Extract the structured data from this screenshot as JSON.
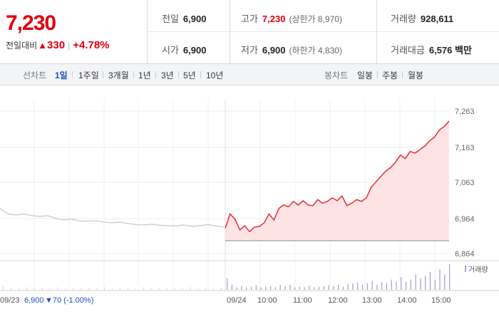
{
  "quote": {
    "price": "7,230",
    "change_label": "전일대비",
    "change_arrow": "▲",
    "change_value": "330",
    "change_pct": "+4.78%"
  },
  "stats": {
    "prev_close": {
      "label": "전일",
      "value": "6,900"
    },
    "high": {
      "label": "고가",
      "value": "7,230",
      "sub": "(상한가 8,970)"
    },
    "volume": {
      "label": "거래량",
      "value": "928,611"
    },
    "open": {
      "label": "시가",
      "value": "6,900"
    },
    "low": {
      "label": "저가",
      "value": "6,900",
      "sub": "(하한가 4,830)"
    },
    "amount": {
      "label": "거래대금",
      "value": "6,576 백만"
    }
  },
  "period_tabs": {
    "label": "선차트",
    "items": [
      "1일",
      "1주일",
      "3개월",
      "1년",
      "3년",
      "5년",
      "10년"
    ],
    "active": "1일"
  },
  "candle_tabs": {
    "label": "봉차트",
    "items": [
      "일봉",
      "주봉",
      "월봉"
    ]
  },
  "chart": {
    "y_ticks": [
      "7,263",
      "7,163",
      "7,063",
      "6,964",
      "6,864"
    ],
    "x_ticks": [
      "09/24",
      "10:00",
      "11:00",
      "12:00",
      "13:00",
      "14:00",
      "15:00"
    ],
    "prev_day_label": "09/23",
    "prev_day_close": "6,900",
    "prev_day_change": "▼70 (-1.00%)",
    "volume_legend": "거래량",
    "colors": {
      "today_line": "#e8202a",
      "today_fill": "#fde3e4",
      "prev_line": "#c8c8c8",
      "volume_prev": "#cfcfcf",
      "volume_today": "#a99bcf",
      "prev_change": "#1a4fc4"
    },
    "series_today": [
      6935,
      6975,
      6960,
      6930,
      6942,
      6925,
      6938,
      6940,
      6950,
      6975,
      6958,
      6990,
      7000,
      6995,
      7010,
      7000,
      7012,
      7000,
      6998,
      7015,
      7005,
      7010,
      7020,
      7012,
      7025,
      6998,
      7005,
      7015,
      7010,
      7020,
      7050,
      7065,
      7080,
      7095,
      7105,
      7120,
      7140,
      7130,
      7150,
      7145,
      7155,
      7165,
      7180,
      7190,
      7210,
      7220,
      7235
    ],
    "series_prev": [
      6990,
      6975,
      6972,
      6975,
      6970,
      6968,
      6970,
      6962,
      6958,
      6960,
      6955,
      6955,
      6956,
      6952,
      6950,
      6952,
      6948,
      6945,
      6944,
      6946,
      6943,
      6942,
      6941,
      6944,
      6940,
      6942,
      6945,
      6941,
      6938
    ],
    "volume_today": [
      0.45,
      0.2,
      0.1,
      0.15,
      0.1,
      0.12,
      0.18,
      0.1,
      0.12,
      0.15,
      0.1,
      0.18,
      0.14,
      0.2,
      0.1,
      0.12,
      0.1,
      0.16,
      0.1,
      0.12,
      0.14,
      0.18,
      0.15,
      0.2,
      0.12,
      0.22,
      0.25,
      0.3,
      0.2,
      0.25,
      0.35,
      0.2,
      0.3,
      0.25,
      0.4,
      0.3,
      0.5,
      0.3,
      0.4,
      0.6,
      0.45,
      0.55,
      0.7,
      0.4,
      0.8,
      0.6,
      1.0
    ],
    "volume_prev": [
      0.3,
      0.15,
      0.1,
      0.2,
      0.1,
      0.15,
      0.1,
      0.2,
      0.1,
      0.12,
      0.1,
      0.15,
      0.1,
      0.2,
      0.1,
      0.12,
      0.15,
      0.1,
      0.2,
      0.1,
      0.12,
      0.1,
      0.15,
      0.1,
      0.2,
      0.1,
      0.12,
      0.1,
      0.15
    ]
  }
}
